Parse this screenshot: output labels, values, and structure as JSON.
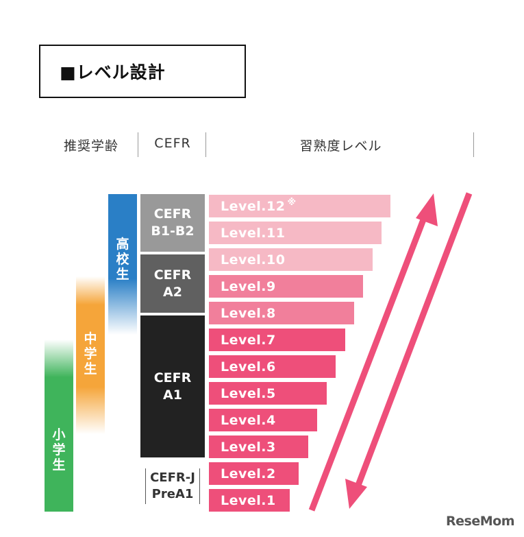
{
  "title": "■レベル設計",
  "headers": {
    "age": "推奨学齢",
    "cefr": "CEFR",
    "level": "習熟度レベル"
  },
  "age_groups": {
    "high": [
      "高",
      "校",
      "生"
    ],
    "middle": [
      "中",
      "学",
      "生"
    ],
    "elementary": [
      "小",
      "学",
      "生"
    ]
  },
  "cefr_blocks": {
    "b1b2": [
      "CEFR",
      "B1-B2"
    ],
    "a2": [
      "CEFR",
      "A2"
    ],
    "a1": [
      "CEFR",
      "A1"
    ],
    "prea1": [
      "CEFR-J",
      "PreA1"
    ]
  },
  "levels": [
    {
      "label": "Level.12",
      "mark": "※"
    },
    {
      "label": "Level.11"
    },
    {
      "label": "Level.10"
    },
    {
      "label": "Level.9"
    },
    {
      "label": "Level.8"
    },
    {
      "label": "Level.7"
    },
    {
      "label": "Level.6"
    },
    {
      "label": "Level.5"
    },
    {
      "label": "Level.4"
    },
    {
      "label": "Level.3"
    },
    {
      "label": "Level.2"
    },
    {
      "label": "Level.1"
    }
  ],
  "colors": {
    "high_school": "#2a7fc6",
    "middle_school": "#f5a53a",
    "elementary": "#3fb45b",
    "cefr_b1b2": "#999999",
    "cefr_a2": "#606060",
    "cefr_a1": "#222222",
    "level_light": "#f6b9c5",
    "level_mid": "#f17f9b",
    "level_dark": "#ee4f7a",
    "arrow": "#ee4f7a"
  },
  "logo": "ReseMom"
}
